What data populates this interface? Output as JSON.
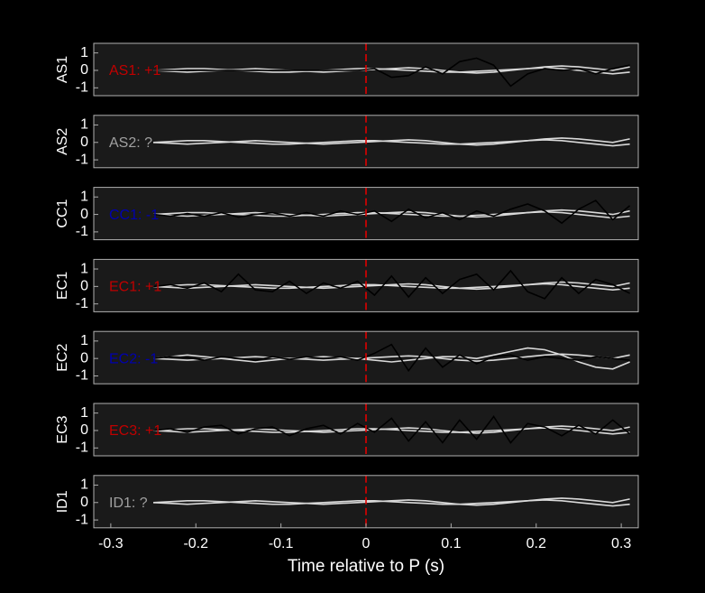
{
  "chart_data": [
    {
      "type": "line",
      "ylabel": "AS1",
      "annotation": "AS1: +1",
      "annotation_color": "#c00000",
      "xlim": [
        -0.32,
        0.32
      ],
      "ylim": [
        -1.45,
        1.55
      ],
      "yticks": [
        -1,
        0,
        1
      ],
      "vline": 0,
      "vline_color": "#e00000",
      "x": [
        -0.25,
        -0.23,
        -0.21,
        -0.19,
        -0.17,
        -0.15,
        -0.13,
        -0.11,
        -0.09,
        -0.07,
        -0.05,
        -0.03,
        -0.01,
        0.01,
        0.03,
        0.05,
        0.07,
        0.09,
        0.11,
        0.13,
        0.15,
        0.17,
        0.19,
        0.21,
        0.23,
        0.25,
        0.27,
        0.29,
        0.31
      ],
      "series": [
        {
          "color": "#d9d9d9",
          "values": [
            0,
            0.05,
            0.1,
            0.1,
            0.05,
            0,
            -0.05,
            -0.1,
            -0.1,
            -0.05,
            0,
            0.05,
            0.1,
            0.1,
            0.05,
            0,
            -0.05,
            -0.1,
            -0.1,
            -0.05,
            0,
            0.05,
            0.1,
            0.15,
            0.1,
            0,
            -0.1,
            -0.2,
            -0.1
          ]
        },
        {
          "color": "#d9d9d9",
          "values": [
            0,
            -0.05,
            -0.1,
            -0.05,
            0,
            0.05,
            0.1,
            0.05,
            0,
            -0.05,
            -0.1,
            -0.05,
            0,
            0.05,
            0.1,
            0.15,
            0.1,
            0,
            -0.1,
            -0.15,
            -0.1,
            0,
            0.1,
            0.2,
            0.25,
            0.2,
            0.1,
            0,
            0.2
          ]
        },
        {
          "color": "#000000",
          "values": [
            0,
            0,
            0,
            0,
            0,
            0,
            0,
            0,
            0,
            0,
            0,
            0,
            0,
            0.1,
            -0.4,
            -0.3,
            0.2,
            -0.2,
            0.5,
            0.7,
            0.3,
            -0.9,
            -0.2,
            0.1,
            0,
            0.1,
            -0.2,
            0.1,
            0.3
          ]
        }
      ]
    },
    {
      "type": "line",
      "ylabel": "AS2",
      "annotation": "AS2: ?",
      "annotation_color": "#a0a0a0",
      "xlim": [
        -0.32,
        0.32
      ],
      "ylim": [
        -1.45,
        1.55
      ],
      "yticks": [
        -1,
        0,
        1
      ],
      "vline": 0,
      "vline_color": "#e00000",
      "x": [
        -0.25,
        -0.23,
        -0.21,
        -0.19,
        -0.17,
        -0.15,
        -0.13,
        -0.11,
        -0.09,
        -0.07,
        -0.05,
        -0.03,
        -0.01,
        0.01,
        0.03,
        0.05,
        0.07,
        0.09,
        0.11,
        0.13,
        0.15,
        0.17,
        0.19,
        0.21,
        0.23,
        0.25,
        0.27,
        0.29,
        0.31
      ],
      "series": [
        {
          "color": "#d9d9d9",
          "values": [
            0,
            0.05,
            0.1,
            0.1,
            0.05,
            0,
            -0.05,
            -0.1,
            -0.1,
            -0.05,
            0,
            0.05,
            0.1,
            0.1,
            0.05,
            0,
            -0.05,
            -0.1,
            -0.1,
            -0.05,
            0,
            0.05,
            0.1,
            0.15,
            0.1,
            0,
            -0.1,
            -0.2,
            -0.1
          ]
        },
        {
          "color": "#d9d9d9",
          "values": [
            0,
            -0.05,
            -0.1,
            -0.05,
            0,
            0.05,
            0.1,
            0.05,
            0,
            -0.05,
            -0.1,
            -0.05,
            0,
            0.05,
            0.1,
            0.15,
            0.1,
            0,
            -0.1,
            -0.15,
            -0.1,
            0,
            0.1,
            0.2,
            0.25,
            0.2,
            0.1,
            0,
            0.2
          ]
        }
      ]
    },
    {
      "type": "line",
      "ylabel": "CC1",
      "annotation": "CC1: -1",
      "annotation_color": "#0000b0",
      "xlim": [
        -0.32,
        0.32
      ],
      "ylim": [
        -1.45,
        1.55
      ],
      "yticks": [
        -1,
        0,
        1
      ],
      "vline": 0,
      "vline_color": "#e00000",
      "x": [
        -0.25,
        -0.23,
        -0.21,
        -0.19,
        -0.17,
        -0.15,
        -0.13,
        -0.11,
        -0.09,
        -0.07,
        -0.05,
        -0.03,
        -0.01,
        0.01,
        0.03,
        0.05,
        0.07,
        0.09,
        0.11,
        0.13,
        0.15,
        0.17,
        0.19,
        0.21,
        0.23,
        0.25,
        0.27,
        0.29,
        0.31
      ],
      "series": [
        {
          "color": "#d9d9d9",
          "values": [
            0,
            0.05,
            0.1,
            0.1,
            0.05,
            0,
            -0.05,
            -0.1,
            -0.1,
            -0.05,
            0,
            0.05,
            0.1,
            0.1,
            0.05,
            0,
            -0.05,
            -0.1,
            -0.1,
            -0.05,
            0,
            0.05,
            0.1,
            0.15,
            0.1,
            0,
            -0.1,
            -0.2,
            -0.1
          ]
        },
        {
          "color": "#d9d9d9",
          "values": [
            0,
            -0.05,
            -0.1,
            -0.05,
            0,
            0.05,
            0.1,
            0.05,
            0,
            -0.05,
            -0.1,
            -0.05,
            0,
            0.05,
            0.1,
            0.15,
            0.1,
            0,
            -0.1,
            -0.15,
            -0.1,
            0,
            0.1,
            0.2,
            0.25,
            0.2,
            0.1,
            0,
            0.2
          ]
        },
        {
          "color": "#000000",
          "values": [
            0,
            -0.1,
            0.05,
            -0.1,
            0.1,
            -0.15,
            0,
            0.1,
            -0.1,
            0.1,
            -0.1,
            0.2,
            0,
            0.2,
            -0.4,
            0.3,
            -0.2,
            0.1,
            -0.3,
            0.2,
            -0.1,
            0.3,
            0.6,
            0.2,
            -0.5,
            0.3,
            0.8,
            -0.3,
            0.5
          ]
        }
      ]
    },
    {
      "type": "line",
      "ylabel": "EC1",
      "annotation": "EC1: +1",
      "annotation_color": "#c00000",
      "xlim": [
        -0.32,
        0.32
      ],
      "ylim": [
        -1.45,
        1.55
      ],
      "yticks": [
        -1,
        0,
        1
      ],
      "vline": 0,
      "vline_color": "#e00000",
      "x": [
        -0.25,
        -0.23,
        -0.21,
        -0.19,
        -0.17,
        -0.15,
        -0.13,
        -0.11,
        -0.09,
        -0.07,
        -0.05,
        -0.03,
        -0.01,
        0.01,
        0.03,
        0.05,
        0.07,
        0.09,
        0.11,
        0.13,
        0.15,
        0.17,
        0.19,
        0.21,
        0.23,
        0.25,
        0.27,
        0.29,
        0.31
      ],
      "series": [
        {
          "color": "#d9d9d9",
          "values": [
            0,
            0.05,
            0.1,
            0.1,
            0.05,
            0,
            -0.05,
            -0.1,
            -0.1,
            -0.05,
            0,
            0.05,
            0.1,
            0.1,
            0.05,
            0,
            -0.05,
            -0.1,
            -0.1,
            -0.05,
            0,
            0.05,
            0.1,
            0.15,
            0.1,
            0,
            -0.1,
            -0.2,
            -0.1
          ]
        },
        {
          "color": "#d9d9d9",
          "values": [
            0,
            -0.05,
            -0.1,
            -0.05,
            0,
            0.05,
            0.1,
            0.05,
            0,
            -0.05,
            -0.1,
            -0.05,
            0,
            0.05,
            0.1,
            0.15,
            0.1,
            0,
            -0.1,
            -0.15,
            -0.1,
            0,
            0.1,
            0.2,
            0.25,
            0.2,
            0.1,
            0,
            0.2
          ]
        },
        {
          "color": "#000000",
          "values": [
            0,
            0.1,
            -0.1,
            0.2,
            -0.3,
            0.7,
            -0.2,
            -0.3,
            0.3,
            -0.4,
            0.2,
            -0.1,
            0.3,
            -0.5,
            0.6,
            -0.6,
            0.5,
            -0.4,
            0.4,
            0.7,
            -0.2,
            0.9,
            -0.3,
            -0.7,
            0.5,
            -0.4,
            0.4,
            0.1,
            -0.4
          ]
        }
      ]
    },
    {
      "type": "line",
      "ylabel": "EC2",
      "annotation": "EC2: -1",
      "annotation_color": "#0000b0",
      "xlim": [
        -0.32,
        0.32
      ],
      "ylim": [
        -1.45,
        1.55
      ],
      "yticks": [
        -1,
        0,
        1
      ],
      "vline": 0,
      "vline_color": "#e00000",
      "x": [
        -0.25,
        -0.23,
        -0.21,
        -0.19,
        -0.17,
        -0.15,
        -0.13,
        -0.11,
        -0.09,
        -0.07,
        -0.05,
        -0.03,
        -0.01,
        0.01,
        0.03,
        0.05,
        0.07,
        0.09,
        0.11,
        0.13,
        0.15,
        0.17,
        0.19,
        0.21,
        0.23,
        0.25,
        0.27,
        0.29,
        0.31
      ],
      "series": [
        {
          "color": "#d9d9d9",
          "values": [
            0,
            0.1,
            0.2,
            0.1,
            0,
            -0.1,
            -0.2,
            -0.1,
            0,
            0.05,
            0.1,
            0.05,
            0,
            -0.1,
            -0.2,
            -0.1,
            0,
            0.1,
            0.1,
            0,
            0.2,
            0.4,
            0.6,
            0.5,
            0.2,
            -0.2,
            -0.5,
            -0.6,
            -0.2
          ]
        },
        {
          "color": "#d9d9d9",
          "values": [
            0,
            -0.05,
            -0.1,
            -0.05,
            0,
            0.05,
            0.1,
            0.05,
            0,
            -0.05,
            -0.1,
            -0.05,
            0,
            0.05,
            0.1,
            0.15,
            0.1,
            0,
            -0.1,
            -0.15,
            -0.1,
            0,
            0.1,
            0.2,
            0.25,
            0.2,
            0.1,
            0,
            0.2
          ]
        },
        {
          "color": "#000000",
          "values": [
            0,
            0.1,
            0.05,
            -0.1,
            0.1,
            0,
            -0.1,
            0.1,
            -0.05,
            0.1,
            0,
            0.1,
            -0.1,
            0.3,
            0.8,
            -0.7,
            0.6,
            -0.5,
            0.2,
            -0.3,
            0.1,
            0.2,
            -0.1,
            0.1,
            0,
            -0.1,
            0.1,
            0,
            -0.1
          ]
        }
      ]
    },
    {
      "type": "line",
      "ylabel": "EC3",
      "annotation": "EC3: +1",
      "annotation_color": "#c00000",
      "xlim": [
        -0.32,
        0.32
      ],
      "ylim": [
        -1.45,
        1.55
      ],
      "yticks": [
        -1,
        0,
        1
      ],
      "vline": 0,
      "vline_color": "#e00000",
      "x": [
        -0.25,
        -0.23,
        -0.21,
        -0.19,
        -0.17,
        -0.15,
        -0.13,
        -0.11,
        -0.09,
        -0.07,
        -0.05,
        -0.03,
        -0.01,
        0.01,
        0.03,
        0.05,
        0.07,
        0.09,
        0.11,
        0.13,
        0.15,
        0.17,
        0.19,
        0.21,
        0.23,
        0.25,
        0.27,
        0.29,
        0.31
      ],
      "series": [
        {
          "color": "#d9d9d9",
          "values": [
            0,
            0.05,
            0.1,
            0.1,
            0.05,
            0,
            -0.05,
            -0.1,
            -0.1,
            -0.05,
            0,
            0.05,
            0.1,
            0.1,
            0.05,
            0,
            -0.05,
            -0.1,
            -0.1,
            -0.05,
            0,
            0.05,
            0.1,
            0.15,
            0.1,
            0,
            -0.1,
            -0.2,
            -0.1
          ]
        },
        {
          "color": "#d9d9d9",
          "values": [
            0,
            -0.05,
            -0.1,
            -0.05,
            0,
            0.05,
            0.1,
            0.05,
            0,
            -0.05,
            -0.1,
            -0.05,
            0,
            0.05,
            0.1,
            0.15,
            0.1,
            0,
            -0.1,
            -0.15,
            -0.1,
            0,
            0.1,
            0.2,
            0.25,
            0.2,
            0.1,
            0,
            0.2
          ]
        },
        {
          "color": "#000000",
          "values": [
            0,
            0.1,
            -0.1,
            0.2,
            0.3,
            -0.2,
            0.1,
            0.2,
            -0.3,
            0.1,
            0.3,
            -0.2,
            0.4,
            -0.1,
            0.7,
            -0.6,
            0.5,
            -0.7,
            0.6,
            -0.5,
            0.8,
            -0.7,
            0.4,
            0.2,
            -0.3,
            0.3,
            -0.2,
            0.6,
            -0.2
          ]
        }
      ]
    },
    {
      "type": "line",
      "ylabel": "ID1",
      "annotation": "ID1: ?",
      "annotation_color": "#a0a0a0",
      "xlim": [
        -0.32,
        0.32
      ],
      "ylim": [
        -1.45,
        1.55
      ],
      "yticks": [
        -1,
        0,
        1
      ],
      "vline": 0,
      "vline_color": "#e00000",
      "xticks": [
        -0.3,
        -0.2,
        -0.1,
        0,
        0.1,
        0.2,
        0.3
      ],
      "xlabel": "Time relative to P (s)",
      "x": [
        -0.25,
        -0.23,
        -0.21,
        -0.19,
        -0.17,
        -0.15,
        -0.13,
        -0.11,
        -0.09,
        -0.07,
        -0.05,
        -0.03,
        -0.01,
        0.01,
        0.03,
        0.05,
        0.07,
        0.09,
        0.11,
        0.13,
        0.15,
        0.17,
        0.19,
        0.21,
        0.23,
        0.25,
        0.27,
        0.29,
        0.31
      ],
      "series": [
        {
          "color": "#d9d9d9",
          "values": [
            0,
            0.05,
            0.1,
            0.1,
            0.05,
            0,
            -0.05,
            -0.1,
            -0.1,
            -0.05,
            0,
            0.05,
            0.1,
            0.1,
            0.05,
            0,
            -0.05,
            -0.1,
            -0.1,
            -0.05,
            0,
            0.05,
            0.1,
            0.15,
            0.1,
            0,
            -0.1,
            -0.2,
            -0.1
          ]
        },
        {
          "color": "#d9d9d9",
          "values": [
            0,
            -0.05,
            -0.1,
            -0.05,
            0,
            0.05,
            0.1,
            0.05,
            0,
            -0.05,
            -0.1,
            -0.05,
            0,
            0.05,
            0.1,
            0.15,
            0.1,
            0,
            -0.1,
            -0.15,
            -0.1,
            0,
            0.1,
            0.2,
            0.25,
            0.2,
            0.1,
            0,
            0.2
          ]
        }
      ]
    }
  ]
}
